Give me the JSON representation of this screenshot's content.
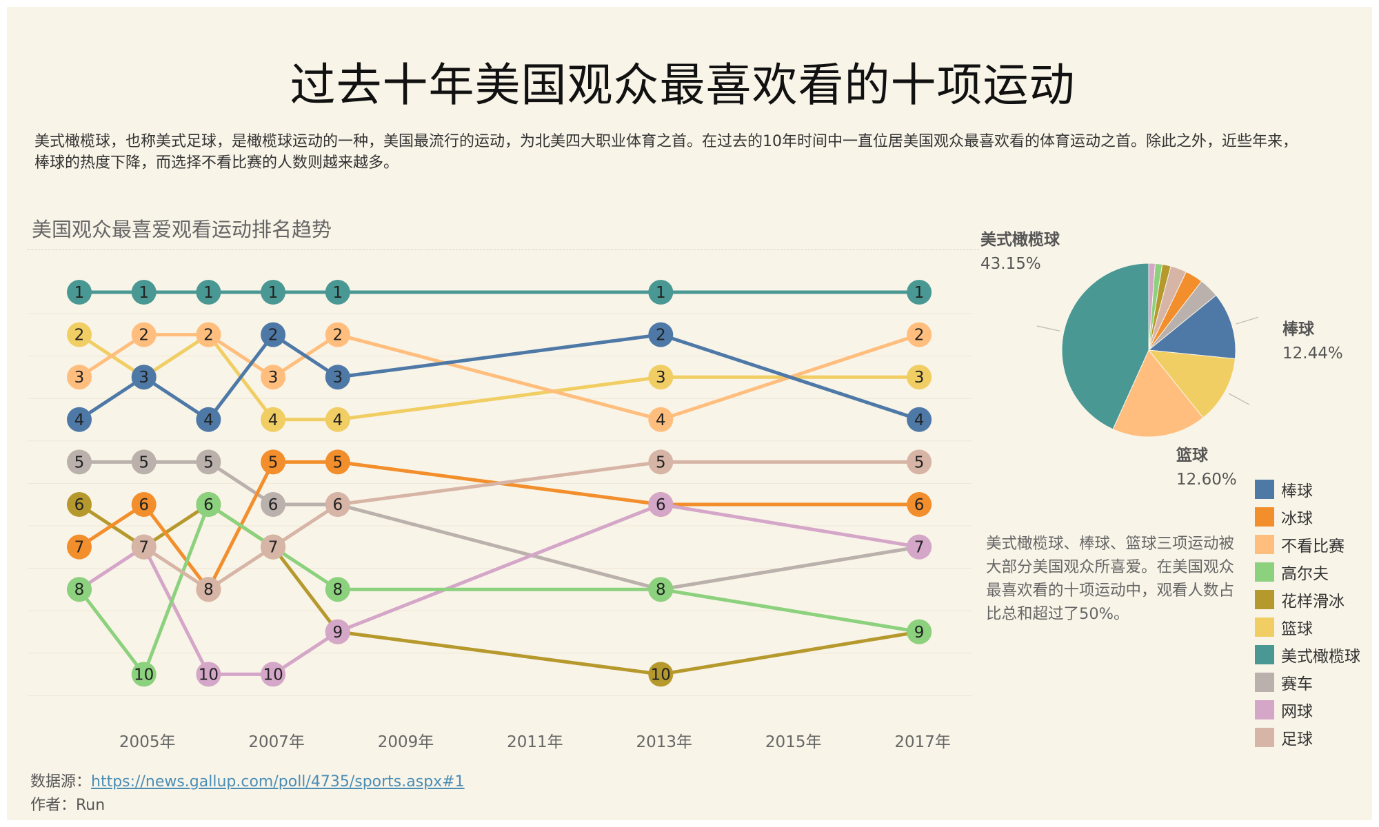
{
  "title": "过去十年美国观众最喜欢看的十项运动",
  "description": "美式橄榄球，也称美式足球，是橄榄球运动的一种，美国最流行的运动，为北美四大职业体育之首。在过去的10年时间中一直位居美国观众最喜欢看的体育运动之首。除此之外，近些年来，棒球的热度下降，而选择不看比赛的人数则越来越多。",
  "section_title": "美国观众最喜爱观看运动排名趋势",
  "annotation": "美式橄榄球、棒球、篮球三项运动被大部分美国观众所喜爱。在美国观众最喜欢看的十项运动中，观看人数占比总和超过了50%。",
  "footer": {
    "source_label": "数据源：",
    "source_url": "https://news.gallup.com/poll/4735/sports.aspx#1",
    "author": "作者：Run"
  },
  "colors": {
    "background": "#f9f4e8",
    "棒球": "#4e79a7",
    "冰球": "#f28e2b",
    "不看比赛": "#ffbe7d",
    "高尔夫": "#8cd17d",
    "花样滑冰": "#b6992d",
    "篮球": "#f1ce63",
    "美式橄榄球": "#499894",
    "赛车": "#bab0ac",
    "网球": "#d4a6c8",
    "足球": "#d7b5a6"
  },
  "legend": [
    "棒球",
    "冰球",
    "不看比赛",
    "高尔夫",
    "花样滑冰",
    "篮球",
    "美式橄榄球",
    "赛车",
    "网球",
    "足球"
  ],
  "chart_data": [
    {
      "type": "line",
      "subtype": "bump",
      "title": "美国观众最喜爱观看运动排名趋势",
      "x": [
        2004,
        2005,
        2006,
        2007,
        2008,
        2013,
        2017
      ],
      "xticks": [
        2005,
        2007,
        2009,
        2011,
        2013,
        2015,
        2017
      ],
      "xtick_labels": [
        "2005年",
        "2007年",
        "2009年",
        "2011年",
        "2013年",
        "2015年",
        "2017年"
      ],
      "y_reversed": true,
      "ylim": [
        1,
        10
      ],
      "grid": true,
      "series": [
        {
          "name": "美式橄榄球",
          "values": [
            1,
            1,
            1,
            1,
            1,
            1,
            1
          ]
        },
        {
          "name": "篮球",
          "values": [
            2,
            3,
            2,
            4,
            4,
            3,
            3
          ]
        },
        {
          "name": "不看比赛",
          "values": [
            3,
            2,
            2,
            3,
            2,
            4,
            2
          ]
        },
        {
          "name": "棒球",
          "values": [
            4,
            3,
            4,
            2,
            3,
            2,
            4
          ]
        },
        {
          "name": "赛车",
          "values": [
            5,
            5,
            5,
            6,
            6,
            8,
            7
          ]
        },
        {
          "name": "花样滑冰",
          "values": [
            6,
            7,
            6,
            7,
            9,
            10,
            9
          ]
        },
        {
          "name": "冰球",
          "values": [
            7,
            6,
            8,
            5,
            5,
            6,
            6
          ]
        },
        {
          "name": "网球",
          "values": [
            8,
            7,
            10,
            10,
            9,
            6,
            7
          ]
        },
        {
          "name": "高尔夫",
          "values": [
            8,
            10,
            6,
            7,
            8,
            8,
            9
          ]
        },
        {
          "name": "足球",
          "values": [
            null,
            7,
            8,
            7,
            6,
            5,
            5
          ]
        }
      ]
    },
    {
      "type": "pie",
      "start_angle": 0,
      "direction": "clockwise",
      "slices": [
        {
          "name": "网球",
          "value": 1.2
        },
        {
          "name": "高尔夫",
          "value": 1.3
        },
        {
          "name": "花样滑冰",
          "value": 1.6
        },
        {
          "name": "足球",
          "value": 3.0
        },
        {
          "name": "冰球",
          "value": 3.3
        },
        {
          "name": "赛车",
          "value": 3.7
        },
        {
          "name": "棒球",
          "value": 12.44
        },
        {
          "name": "篮球",
          "value": 12.6
        },
        {
          "name": "不看比赛",
          "value": 17.5
        },
        {
          "name": "美式橄榄球",
          "value": 43.15
        }
      ],
      "labels": [
        {
          "name": "美式橄榄球",
          "pct": "43.15%"
        },
        {
          "name": "棒球",
          "pct": "12.44%"
        },
        {
          "name": "篮球",
          "pct": "12.60%"
        }
      ]
    }
  ]
}
